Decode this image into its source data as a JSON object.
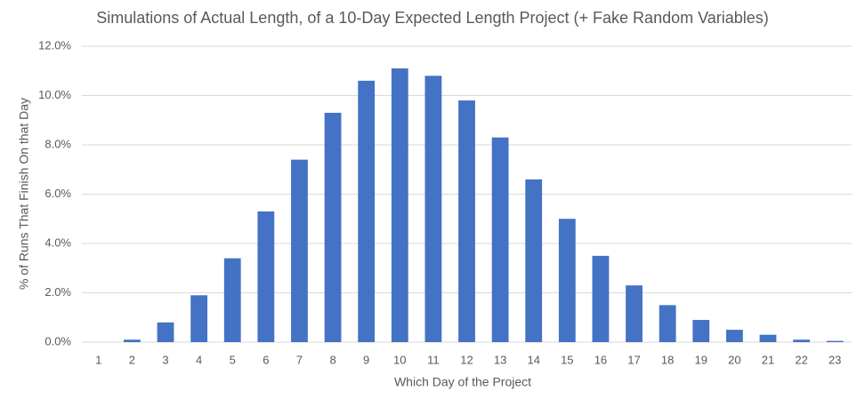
{
  "chart_data": {
    "type": "bar",
    "title": "Simulations of Actual Length, of a 10-Day Expected Length Project (+ Fake Random Variables)",
    "x_label": "Which Day of the Project",
    "y_label": "% of Runs That Finish On that Day",
    "categories": [
      "1",
      "2",
      "3",
      "4",
      "5",
      "6",
      "7",
      "8",
      "9",
      "10",
      "11",
      "12",
      "13",
      "14",
      "15",
      "16",
      "17",
      "18",
      "19",
      "20",
      "21",
      "22",
      "23"
    ],
    "values": [
      0,
      0.1,
      0.8,
      1.9,
      3.4,
      5.3,
      7.4,
      9.3,
      10.6,
      11.1,
      10.8,
      9.8,
      8.3,
      6.6,
      5.0,
      3.5,
      2.3,
      1.5,
      0.9,
      0.5,
      0.3,
      0.1,
      0.05
    ],
    "color": "#4472c4",
    "ylim": [
      0,
      12
    ],
    "yticks": [
      {
        "value": 0,
        "label": "0.0%"
      },
      {
        "value": 2,
        "label": "2.0%"
      },
      {
        "value": 4,
        "label": "4.0%"
      },
      {
        "value": 6,
        "label": "6.0%"
      },
      {
        "value": 8,
        "label": "8.0%"
      },
      {
        "value": 10,
        "label": "10.0%"
      },
      {
        "value": 12,
        "label": "12.0%"
      }
    ],
    "grid": true
  }
}
